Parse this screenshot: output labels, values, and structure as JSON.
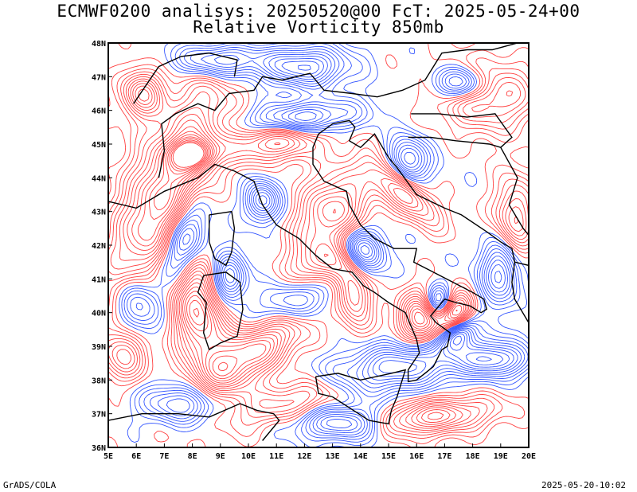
{
  "titles": {
    "line1": "ECMWF0200 analisys: 20250520@00 FcT: 2025-05-24+00",
    "line2": "Relative Vorticity 850mb"
  },
  "footer": {
    "left": "GrADS/COLA",
    "right": "2025-05-20-10:02"
  },
  "map": {
    "lon_range": [
      5,
      20
    ],
    "lat_range": [
      36,
      48
    ],
    "lon_ticks": [
      "5E",
      "6E",
      "7E",
      "8E",
      "9E",
      "10E",
      "11E",
      "12E",
      "13E",
      "14E",
      "15E",
      "16E",
      "17E",
      "18E",
      "19E",
      "20E"
    ],
    "lat_ticks": [
      "36N",
      "37N",
      "38N",
      "39N",
      "40N",
      "41N",
      "42N",
      "43N",
      "44N",
      "45N",
      "46N",
      "47N",
      "48N"
    ],
    "colors": {
      "positive_vorticity": "#ff4040",
      "negative_vorticity": "#3355ff",
      "coastline": "#000000",
      "frame": "#000000"
    }
  }
}
